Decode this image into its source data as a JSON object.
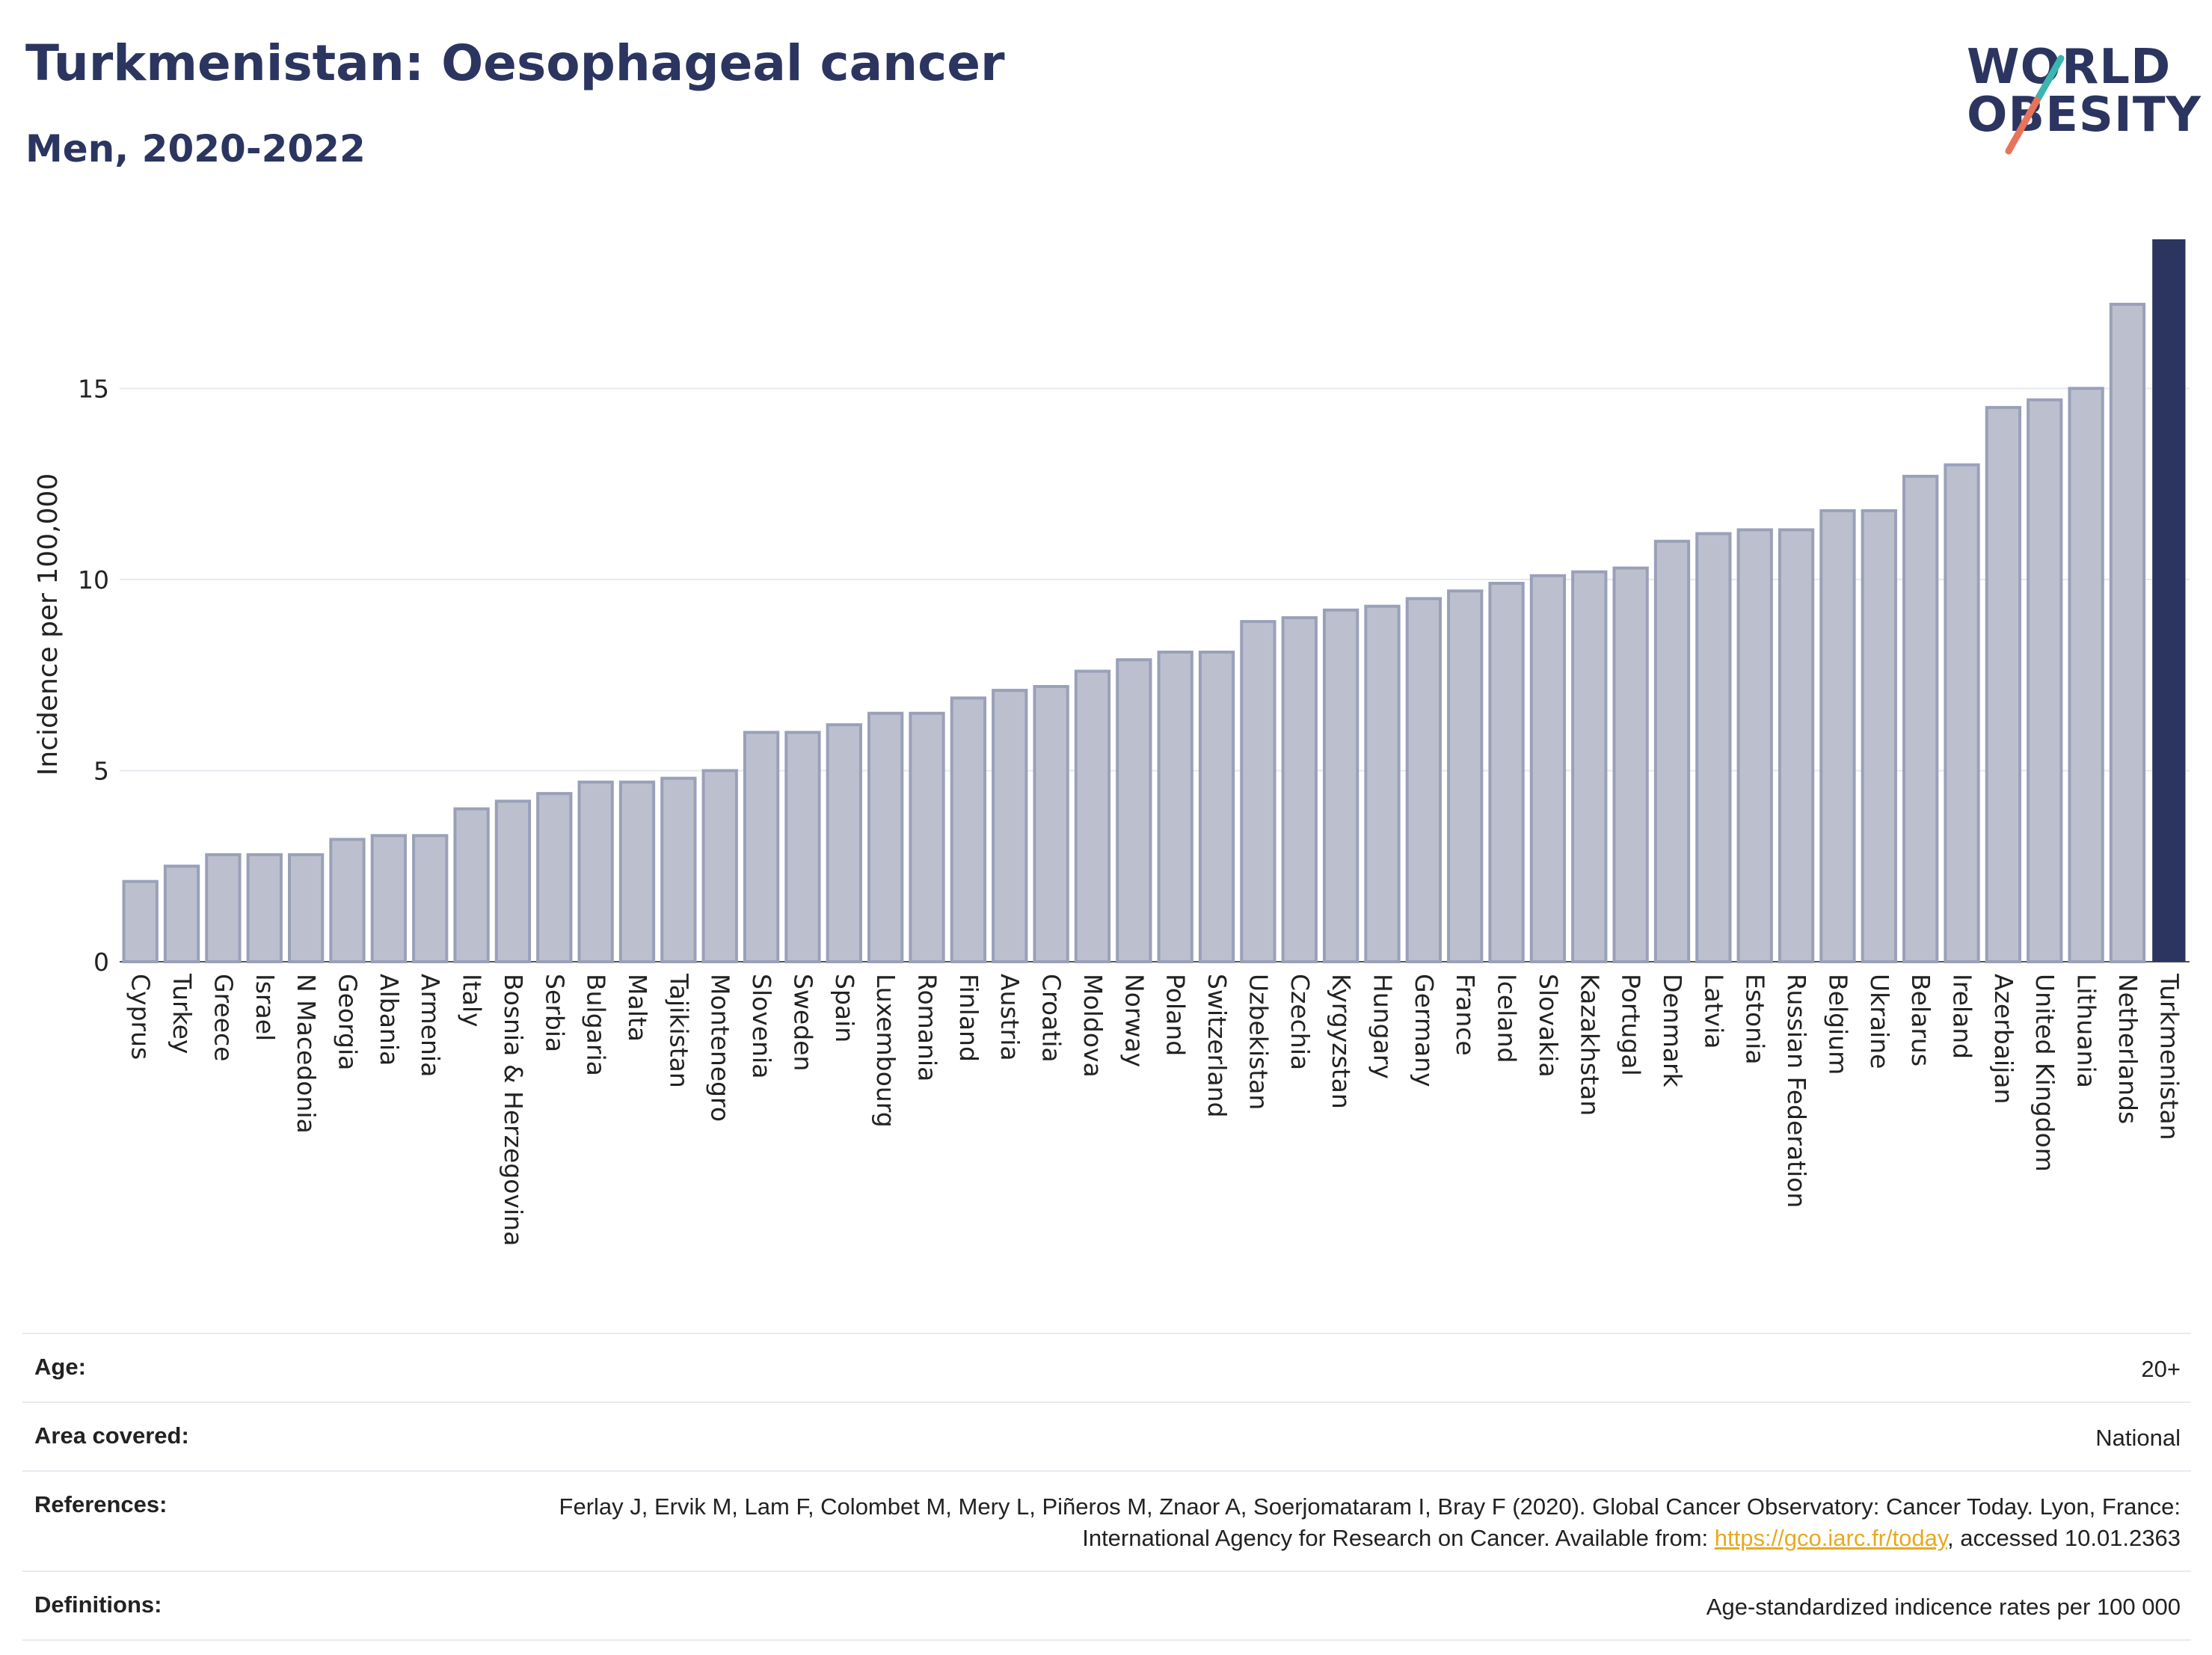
{
  "header": {
    "title": "Turkmenistan: Oesophageal cancer",
    "subtitle": "Men, 2020-2022"
  },
  "logo": {
    "line1": "WORLD",
    "line2": "OBESITY",
    "slash_color_top": "#3ab5b0",
    "slash_color_bottom": "#e8735a"
  },
  "chart_data": {
    "type": "bar",
    "ylabel": "Incidence per 100,000",
    "ylim": [
      0,
      18.9
    ],
    "yticks": [
      0,
      5,
      10,
      15
    ],
    "grid": true,
    "colors": {
      "default": "#bcc0ce",
      "default_stroke": "#9aa0b8",
      "highlight": "#2b3560"
    },
    "highlight": "Turkmenistan",
    "categories": [
      "Cyprus",
      "Turkey",
      "Greece",
      "Israel",
      "N Macedonia",
      "Georgia",
      "Albania",
      "Armenia",
      "Italy",
      "Bosnia & Herzegovina",
      "Serbia",
      "Bulgaria",
      "Malta",
      "Tajikistan",
      "Montenegro",
      "Slovenia",
      "Sweden",
      "Spain",
      "Luxembourg",
      "Romania",
      "Finland",
      "Austria",
      "Croatia",
      "Moldova",
      "Norway",
      "Poland",
      "Switzerland",
      "Uzbekistan",
      "Czechia",
      "Kyrgyzstan",
      "Hungary",
      "Germany",
      "France",
      "Iceland",
      "Slovakia",
      "Kazakhstan",
      "Portugal",
      "Denmark",
      "Latvia",
      "Estonia",
      "Russian Federation",
      "Belgium",
      "Ukraine",
      "Belarus",
      "Ireland",
      "Azerbaijan",
      "United Kingdom",
      "Lithuania",
      "Netherlands",
      "Turkmenistan"
    ],
    "values": [
      2.1,
      2.5,
      2.8,
      2.8,
      2.8,
      3.2,
      3.3,
      3.3,
      4.0,
      4.2,
      4.4,
      4.7,
      4.7,
      4.8,
      5.0,
      6.0,
      6.0,
      6.2,
      6.5,
      6.5,
      6.9,
      7.1,
      7.2,
      7.6,
      7.9,
      8.1,
      8.1,
      8.9,
      9.0,
      9.2,
      9.3,
      9.5,
      9.7,
      9.9,
      10.1,
      10.2,
      10.3,
      11.0,
      11.2,
      11.3,
      11.3,
      11.8,
      11.8,
      12.7,
      13.0,
      14.5,
      14.7,
      15.0,
      17.2,
      18.9
    ]
  },
  "meta": {
    "age_label": "Age:",
    "age_value": "20+",
    "area_label": "Area covered:",
    "area_value": "National",
    "references_label": "References:",
    "references_text_1": "Ferlay J, Ervik M, Lam F, Colombet M, Mery L, Piñeros M, Znaor A, Soerjomataram I, Bray F (2020). Global Cancer Observatory: Cancer Today. Lyon, France: International Agency for Research on Cancer. Available from: ",
    "references_link": "https://gco.iarc.fr/today",
    "references_text_2": ", accessed 10.01.2363",
    "definitions_label": "Definitions:",
    "definitions_value": "Age-standardized indicence rates per 100 000"
  }
}
